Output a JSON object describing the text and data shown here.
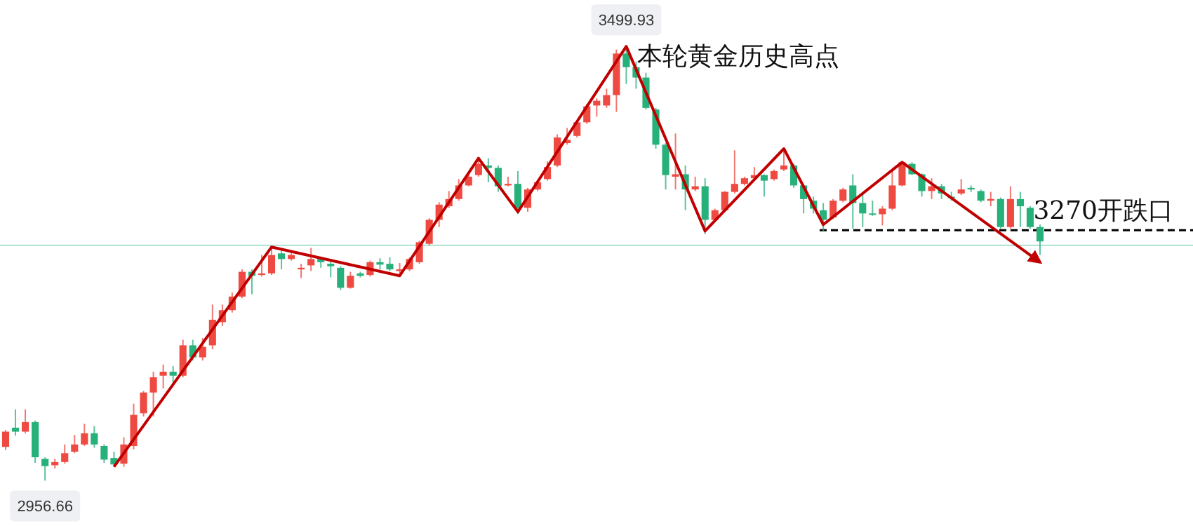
{
  "chart_data": {
    "type": "candlestick",
    "ylim": [
      2900,
      3558
    ],
    "categories": [
      null,
      null,
      null,
      null,
      null,
      null,
      null,
      null,
      null,
      null,
      null,
      null,
      null,
      null,
      null,
      null,
      null,
      null,
      null,
      null,
      null,
      null,
      null,
      null,
      null,
      null,
      null,
      null,
      null,
      null,
      null,
      null,
      null,
      null,
      null,
      null,
      null,
      null,
      null,
      null,
      null,
      null,
      null,
      null,
      null,
      null,
      null,
      null,
      null,
      null,
      null,
      null,
      null,
      null,
      null,
      null,
      null,
      null,
      null,
      null,
      null,
      null,
      null,
      null,
      null,
      null,
      null,
      null,
      null,
      null,
      null,
      null,
      null,
      null,
      null,
      null,
      null,
      null,
      null,
      null,
      null,
      null,
      null,
      null,
      null,
      null,
      null,
      null,
      null,
      null,
      null,
      null,
      null,
      null,
      null,
      null,
      null,
      null,
      null,
      null,
      null,
      null,
      null,
      null,
      null,
      null
    ],
    "ohlc": [
      [
        2999,
        3020,
        2995,
        3018
      ],
      [
        3023,
        3046,
        3013,
        3018
      ],
      [
        3018,
        3046,
        3016,
        3030
      ],
      [
        3030,
        3032,
        2979,
        2986
      ],
      [
        2984,
        2986,
        2956.66,
        2975
      ],
      [
        2976,
        2984,
        2972,
        2980
      ],
      [
        2980,
        3002,
        2978,
        2991
      ],
      [
        2993,
        3014,
        2991,
        3002
      ],
      [
        3002,
        3028,
        3000,
        3016
      ],
      [
        3016,
        3025,
        2998,
        3002
      ],
      [
        3000,
        3002,
        2979,
        2983
      ],
      [
        2985,
        2993,
        2975,
        2977
      ],
      [
        2978,
        3011,
        2974,
        3002
      ],
      [
        3000,
        3053,
        2996,
        3039
      ],
      [
        3041,
        3069,
        3037,
        3067
      ],
      [
        3067,
        3093,
        3037,
        3086
      ],
      [
        3088,
        3102,
        3072,
        3093
      ],
      [
        3093,
        3100,
        3075,
        3088
      ],
      [
        3088,
        3133,
        3086,
        3126
      ],
      [
        3126,
        3133,
        3107,
        3111
      ],
      [
        3111,
        3135,
        3107,
        3124
      ],
      [
        3126,
        3177,
        3121,
        3158
      ],
      [
        3155,
        3177,
        3150,
        3170
      ],
      [
        3170,
        3192,
        3167,
        3187
      ],
      [
        3187,
        3221,
        3185,
        3218
      ],
      [
        3218,
        3221,
        3190,
        3213
      ],
      [
        3214,
        3239,
        3212,
        3216
      ],
      [
        3216,
        3251,
        3214,
        3239
      ],
      [
        3241,
        3246,
        3221,
        3234
      ],
      [
        3234,
        3243,
        3232,
        3239
      ],
      [
        3221,
        3228,
        3210,
        3223
      ],
      [
        3226,
        3248,
        3219,
        3234
      ],
      [
        3234,
        3237,
        3223,
        3230
      ],
      [
        3228,
        3232,
        3211,
        3225
      ],
      [
        3223,
        3225,
        3195,
        3198
      ],
      [
        3198,
        3218,
        3197,
        3213
      ],
      [
        3216,
        3218,
        3211,
        3213
      ],
      [
        3214,
        3232,
        3212,
        3230
      ],
      [
        3230,
        3235,
        3221,
        3227
      ],
      [
        3228,
        3236,
        3219,
        3221
      ],
      [
        3219,
        3229,
        3216,
        3221
      ],
      [
        3221,
        3236,
        3219,
        3234
      ],
      [
        3230,
        3257,
        3228,
        3255
      ],
      [
        3253,
        3285,
        3251,
        3283
      ],
      [
        3283,
        3305,
        3274,
        3302
      ],
      [
        3300,
        3319,
        3298,
        3309
      ],
      [
        3309,
        3334,
        3307,
        3326
      ],
      [
        3326,
        3340,
        3325,
        3337
      ],
      [
        3339,
        3360,
        3337,
        3353
      ],
      [
        3351,
        3360,
        3330,
        3348
      ],
      [
        3348,
        3351,
        3318,
        3325
      ],
      [
        3326,
        3337,
        3325,
        3328
      ],
      [
        3328,
        3344,
        3290,
        3298
      ],
      [
        3298,
        3323,
        3293,
        3321
      ],
      [
        3321,
        3332,
        3319,
        3330
      ],
      [
        3334,
        3356,
        3332,
        3349
      ],
      [
        3351,
        3390,
        3349,
        3386
      ],
      [
        3379,
        3398,
        3377,
        3383
      ],
      [
        3388,
        3407,
        3386,
        3405
      ],
      [
        3405,
        3428,
        3403,
        3425
      ],
      [
        3426,
        3435,
        3412,
        3432
      ],
      [
        3426,
        3447,
        3423,
        3439
      ],
      [
        3439,
        3496,
        3418,
        3491
      ],
      [
        3491,
        3499.93,
        3453,
        3474
      ],
      [
        3474,
        3481,
        3447,
        3461
      ],
      [
        3461,
        3467,
        3421,
        3423
      ],
      [
        3421,
        3423,
        3372,
        3377
      ],
      [
        3377,
        3379,
        3321,
        3339
      ],
      [
        3337,
        3391,
        3321,
        3340
      ],
      [
        3340,
        3351,
        3295,
        3321
      ],
      [
        3321,
        3337,
        3319,
        3325
      ],
      [
        3325,
        3335,
        3265,
        3283
      ],
      [
        3283,
        3297,
        3281,
        3295
      ],
      [
        3295,
        3319,
        3293,
        3318
      ],
      [
        3318,
        3370,
        3316,
        3328
      ],
      [
        3328,
        3337,
        3326,
        3335
      ],
      [
        3335,
        3349,
        3334,
        3339
      ],
      [
        3339,
        3340,
        3312,
        3332
      ],
      [
        3334,
        3346,
        3332,
        3344
      ],
      [
        3346,
        3370,
        3344,
        3351
      ],
      [
        3351,
        3353,
        3323,
        3326
      ],
      [
        3326,
        3328,
        3291,
        3309
      ],
      [
        3307,
        3312,
        3291,
        3297
      ],
      [
        3295,
        3304,
        3269,
        3283
      ],
      [
        3286,
        3309,
        3284,
        3307
      ],
      [
        3307,
        3323,
        3305,
        3321
      ],
      [
        3326,
        3340,
        3272,
        3304
      ],
      [
        3304,
        3316,
        3274,
        3291
      ],
      [
        3291,
        3307,
        3288,
        3290
      ],
      [
        3290,
        3300,
        3276,
        3297
      ],
      [
        3297,
        3344,
        3295,
        3326
      ],
      [
        3326,
        3356,
        3325,
        3355
      ],
      [
        3353,
        3355,
        3339,
        3340
      ],
      [
        3340,
        3341,
        3312,
        3319
      ],
      [
        3319,
        3335,
        3309,
        3325
      ],
      [
        3325,
        3328,
        3309,
        3316
      ],
      [
        3312,
        3318,
        3307,
        3311
      ],
      [
        3316,
        3334,
        3314,
        3321
      ],
      [
        3323,
        3326,
        3318,
        3321
      ],
      [
        3319,
        3321,
        3305,
        3307
      ],
      [
        3307,
        3318,
        3300,
        3309
      ],
      [
        3309,
        3311,
        3272,
        3274
      ],
      [
        3274,
        3325,
        3272,
        3309
      ],
      [
        3309,
        3318,
        3274,
        3300
      ],
      [
        3298,
        3300,
        3272,
        3274
      ],
      [
        3274,
        3277,
        3239,
        3256
      ]
    ],
    "ref_lines": [
      {
        "axis": "y",
        "value": 3251,
        "color": "#b3e6d4"
      },
      {
        "axis": "y",
        "value": 3270,
        "label": "3270开跌口",
        "color": "#000000",
        "line_style": "dashed"
      }
    ],
    "series": [
      {
        "type": "line",
        "color": "#c00000",
        "values": [
          null,
          null,
          null,
          null,
          null,
          null,
          null,
          null,
          null,
          null,
          null,
          2974,
          null,
          null,
          null,
          null,
          null,
          null,
          null,
          null,
          null,
          null,
          null,
          null,
          null,
          null,
          null,
          3249,
          null,
          null,
          null,
          null,
          null,
          null,
          null,
          null,
          null,
          null,
          null,
          null,
          3213,
          null,
          null,
          null,
          null,
          null,
          null,
          null,
          3360,
          null,
          null,
          null,
          3293,
          null,
          null,
          null,
          null,
          null,
          null,
          null,
          null,
          null,
          null,
          3500,
          null,
          null,
          null,
          null,
          null,
          null,
          null,
          3269,
          null,
          null,
          null,
          null,
          null,
          null,
          null,
          3372,
          null,
          null,
          null,
          3277,
          null,
          null,
          null,
          null,
          null,
          null,
          null,
          3355,
          null,
          null,
          null,
          null,
          null,
          null,
          null,
          null,
          null,
          null,
          null,
          null,
          null,
          3230
        ]
      }
    ],
    "annotations": [
      "本轮黄金历史高点",
      {
        "text": "3499.93",
        "y": 3499.93
      },
      {
        "text": "2956.66",
        "y": 2956.66
      }
    ]
  }
}
